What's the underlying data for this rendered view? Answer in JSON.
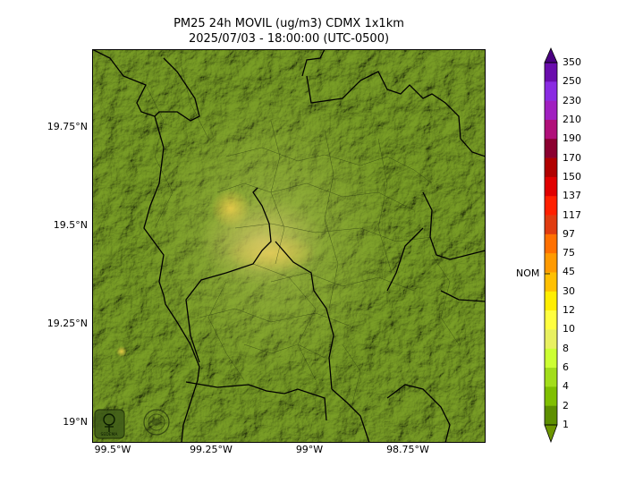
{
  "title": {
    "line1": "PM25 24h MOVIL (ug/m3) CDMX 1x1km",
    "line2": "2025/07/03 - 18:00:00 (UTC-0500)"
  },
  "axes": {
    "y_ticks": [
      "19.75°N",
      "19.5°N",
      "19.25°N",
      "19°N"
    ],
    "x_ticks": [
      "99.5°W",
      "99.25°W",
      "99°W",
      "98.75°W"
    ]
  },
  "colorbar": {
    "labels": [
      "350",
      "250",
      "230",
      "210",
      "190",
      "170",
      "150",
      "137",
      "117",
      "97",
      "75",
      "45",
      "30",
      "12",
      "10",
      "8",
      "6",
      "4",
      "2",
      "1"
    ],
    "colors": [
      "#4b0082",
      "#6a0dad",
      "#8a2be2",
      "#a020c0",
      "#b0107a",
      "#8b0030",
      "#b00000",
      "#e00000",
      "#ff2000",
      "#e03c10",
      "#ff7000",
      "#ff9a00",
      "#ffc000",
      "#ffee00",
      "#ffff40",
      "#e8f060",
      "#ccff33",
      "#a2dd1a",
      "#7fbf00",
      "#5d8f00",
      "#6d9600"
    ],
    "nom_label": "NOM"
  },
  "logos": {
    "logo1": "SEDEMA"
  },
  "map": {
    "base_color": "#7ea02a",
    "hotspot_color": "#e9cb45"
  }
}
